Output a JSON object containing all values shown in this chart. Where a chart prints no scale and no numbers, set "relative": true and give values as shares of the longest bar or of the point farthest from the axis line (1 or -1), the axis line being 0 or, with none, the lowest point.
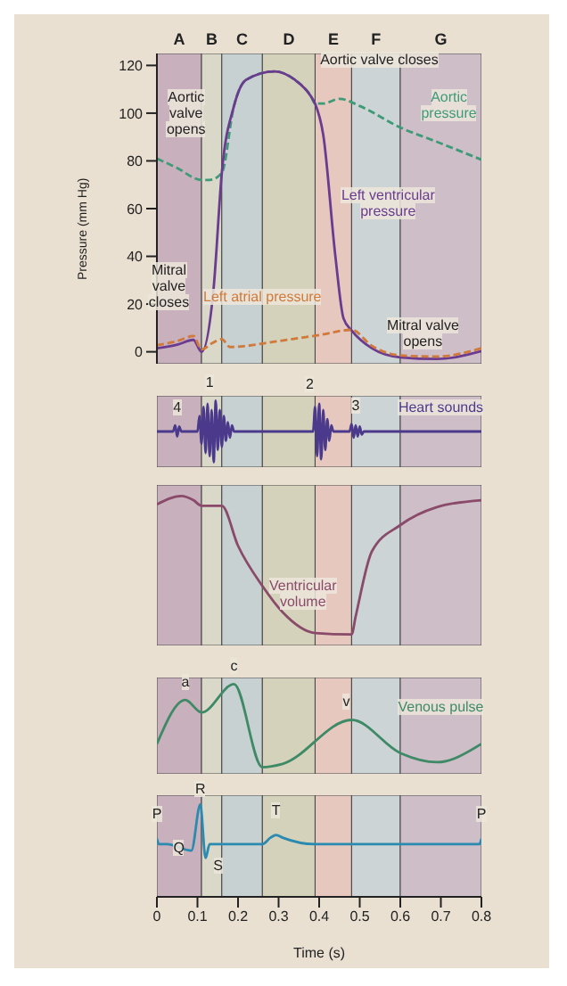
{
  "chart_data": [
    {
      "type": "line",
      "ylabel": "Pressure (mm Hg)",
      "xlim": [
        0,
        0.8
      ],
      "ylim": [
        -5,
        125
      ],
      "yticks": [
        0,
        20,
        40,
        60,
        80,
        100,
        120
      ],
      "tick_labels": "y",
      "series": [
        {
          "name": "Aortic pressure",
          "color": "#3f9a78",
          "line_style": "dashed",
          "x": [
            0,
            0.05,
            0.11,
            0.13,
            0.16,
            0.19,
            0.22,
            0.29,
            0.34,
            0.38,
            0.39,
            0.41,
            0.45,
            0.5,
            0.6,
            0.69,
            0.8
          ],
          "values": [
            81,
            77,
            72,
            72,
            75,
            103,
            114,
            117.5,
            114,
            107,
            104,
            104,
            106,
            103,
            94,
            88,
            80.5
          ]
        },
        {
          "name": "Left ventricular pressure",
          "color": "#6a3b8e",
          "x": [
            0,
            0.05,
            0.09,
            0.11,
            0.14,
            0.16,
            0.19,
            0.22,
            0.29,
            0.34,
            0.38,
            0.39,
            0.41,
            0.44,
            0.46,
            0.48,
            0.53,
            0.6,
            0.69,
            0.8
          ],
          "values": [
            1.5,
            3,
            5,
            0,
            27,
            75,
            103,
            114,
            117.5,
            114,
            107,
            104,
            91,
            40,
            14,
            9,
            1.5,
            -2.3,
            -3,
            0.3
          ]
        },
        {
          "name": "Left atrial pressure",
          "color": "#d0793a",
          "line_style": "dashed",
          "x": [
            0,
            0.05,
            0.09,
            0.11,
            0.14,
            0.16,
            0.18,
            0.3,
            0.4,
            0.48,
            0.53,
            0.6,
            0.69,
            0.8
          ],
          "values": [
            2.8,
            4.5,
            6.6,
            1,
            4,
            5.3,
            2,
            4.5,
            7,
            9.2,
            2.5,
            -1.5,
            -2,
            1.5
          ]
        }
      ],
      "annotations": [
        {
          "text": "Aortic valve opens",
          "x": 0.16,
          "y": 75
        },
        {
          "text": "Aortic valve closes",
          "x": 0.39,
          "y": 104
        },
        {
          "text": "Mitral valve closes",
          "x": 0.1,
          "y": 4
        },
        {
          "text": "Mitral valve opens",
          "x": 0.48,
          "y": 9
        }
      ],
      "bands": [
        {
          "axis": "x",
          "from": 0,
          "to": 0.11,
          "label": "A",
          "color": "#c9b0bd"
        },
        {
          "axis": "x",
          "from": 0.11,
          "to": 0.16,
          "label": "B",
          "color": "#d9d8c9"
        },
        {
          "axis": "x",
          "from": 0.16,
          "to": 0.26,
          "label": "C",
          "color": "#c8d1d2"
        },
        {
          "axis": "x",
          "from": 0.26,
          "to": 0.39,
          "label": "D",
          "color": "#d5d2bb"
        },
        {
          "axis": "x",
          "from": 0.39,
          "to": 0.48,
          "label": "E",
          "color": "#e6c8bf"
        },
        {
          "axis": "x",
          "from": 0.48,
          "to": 0.6,
          "label": "F",
          "color": "#ccd4d5"
        },
        {
          "axis": "x",
          "from": 0.6,
          "to": 0.8,
          "label": "G",
          "color": "#cdbec8"
        }
      ]
    },
    {
      "type": "line",
      "relative": true,
      "xlim": [
        0,
        0.8
      ],
      "tick_labels": false,
      "series": [
        {
          "name": "Heart sounds",
          "color": "#4b3a8c",
          "x": [
            0,
            0.04,
            0.045,
            0.05,
            0.055,
            0.06,
            0.1,
            0.105,
            0.11,
            0.115,
            0.12,
            0.125,
            0.13,
            0.135,
            0.14,
            0.145,
            0.15,
            0.155,
            0.16,
            0.165,
            0.17,
            0.175,
            0.18,
            0.185,
            0.19,
            0.385,
            0.39,
            0.395,
            0.4,
            0.405,
            0.41,
            0.415,
            0.42,
            0.425,
            0.43,
            0.435,
            0.475,
            0.48,
            0.485,
            0.49,
            0.495,
            0.5,
            0.505,
            0.51,
            0.8
          ],
          "values": [
            0.5,
            0.5,
            0.6,
            0.42,
            0.58,
            0.5,
            0.5,
            0.75,
            0.3,
            0.9,
            0.15,
            0.95,
            0.1,
            0.85,
            0,
            1,
            0.2,
            0.85,
            0.25,
            0.75,
            0.35,
            0.65,
            0.4,
            0.6,
            0.5,
            0.5,
            0.9,
            0.1,
            0.95,
            0.05,
            0.85,
            0.2,
            0.7,
            0.35,
            0.6,
            0.5,
            0.5,
            0.62,
            0.4,
            0.6,
            0.42,
            0.58,
            0.45,
            0.5,
            0.5
          ]
        }
      ],
      "annotations": [
        {
          "text": "4",
          "x": 0.05,
          "y": 0.6
        },
        {
          "text": "1",
          "x": 0.13,
          "y": 1
        },
        {
          "text": "2",
          "x": 0.39,
          "y": 0.95
        },
        {
          "text": "3",
          "x": 0.49,
          "y": 0.62
        }
      ],
      "bands": [
        {
          "axis": "x",
          "from": 0,
          "to": 0.11,
          "color": "#c9b0bd"
        },
        {
          "axis": "x",
          "from": 0.11,
          "to": 0.16,
          "color": "#d9d8c9"
        },
        {
          "axis": "x",
          "from": 0.16,
          "to": 0.26,
          "color": "#c8d1d2"
        },
        {
          "axis": "x",
          "from": 0.26,
          "to": 0.39,
          "color": "#d5d2bb"
        },
        {
          "axis": "x",
          "from": 0.39,
          "to": 0.48,
          "color": "#e6c8bf"
        },
        {
          "axis": "x",
          "from": 0.48,
          "to": 0.6,
          "color": "#ccd4d5"
        },
        {
          "axis": "x",
          "from": 0.6,
          "to": 0.8,
          "color": "#cdbec8"
        }
      ]
    },
    {
      "type": "line",
      "relative": true,
      "xlim": [
        0,
        0.8
      ],
      "tick_labels": false,
      "series": [
        {
          "name": "Ventricular volume",
          "color": "#8a4a6a",
          "x": [
            0,
            0.06,
            0.09,
            0.11,
            0.16,
            0.2,
            0.26,
            0.31,
            0.39,
            0.48,
            0.49,
            0.53,
            0.6,
            0.69,
            0.8
          ],
          "values": [
            0.94,
            1,
            0.97,
            0.93,
            0.93,
            0.64,
            0.35,
            0.16,
            0.01,
            0,
            0.13,
            0.6,
            0.79,
            0.92,
            0.97
          ]
        }
      ],
      "bands": [
        {
          "axis": "x",
          "from": 0,
          "to": 0.11,
          "color": "#c9b0bd"
        },
        {
          "axis": "x",
          "from": 0.11,
          "to": 0.16,
          "color": "#d9d8c9"
        },
        {
          "axis": "x",
          "from": 0.16,
          "to": 0.26,
          "color": "#c8d1d2"
        },
        {
          "axis": "x",
          "from": 0.26,
          "to": 0.39,
          "color": "#d5d2bb"
        },
        {
          "axis": "x",
          "from": 0.39,
          "to": 0.48,
          "color": "#e6c8bf"
        },
        {
          "axis": "x",
          "from": 0.48,
          "to": 0.6,
          "color": "#ccd4d5"
        },
        {
          "axis": "x",
          "from": 0.6,
          "to": 0.8,
          "color": "#cdbec8"
        }
      ]
    },
    {
      "type": "line",
      "relative": true,
      "xlim": [
        0,
        0.8
      ],
      "tick_labels": false,
      "series": [
        {
          "name": "Venous pulse",
          "color": "#3f8a66",
          "x": [
            0,
            0.07,
            0.11,
            0.19,
            0.26,
            0.31,
            0.48,
            0.6,
            0.69,
            0.8
          ],
          "values": [
            0.28,
            0.81,
            0.66,
            1,
            0,
            0.04,
            0.57,
            0.17,
            0.06,
            0.28
          ]
        }
      ],
      "annotations": [
        {
          "text": "a",
          "x": 0.07,
          "y": 0.81
        },
        {
          "text": "c",
          "x": 0.19,
          "y": 1
        },
        {
          "text": "v",
          "x": 0.48,
          "y": 0.57
        }
      ],
      "bands": [
        {
          "axis": "x",
          "from": 0,
          "to": 0.11,
          "color": "#c9b0bd"
        },
        {
          "axis": "x",
          "from": 0.11,
          "to": 0.16,
          "color": "#d9d8c9"
        },
        {
          "axis": "x",
          "from": 0.16,
          "to": 0.26,
          "color": "#c8d1d2"
        },
        {
          "axis": "x",
          "from": 0.26,
          "to": 0.39,
          "color": "#d5d2bb"
        },
        {
          "axis": "x",
          "from": 0.39,
          "to": 0.48,
          "color": "#e6c8bf"
        },
        {
          "axis": "x",
          "from": 0.48,
          "to": 0.6,
          "color": "#ccd4d5"
        },
        {
          "axis": "x",
          "from": 0.6,
          "to": 0.8,
          "color": "#cdbec8"
        }
      ]
    },
    {
      "type": "line",
      "relative": true,
      "xlabel": "Time (s)",
      "xlim": [
        0,
        0.8
      ],
      "xticks": [
        0,
        0.1,
        0.2,
        0.3,
        0.4,
        0.5,
        0.6,
        0.7,
        0.8
      ],
      "tick_labels": "x",
      "series": [
        {
          "color": "#2a8ab0",
          "x": [
            0,
            0.005,
            0.025,
            0.085,
            0.107,
            0.12,
            0.13,
            0.26,
            0.28,
            0.294,
            0.31,
            0.39,
            0.795,
            0.8
          ],
          "values": [
            0.63,
            0.57,
            0.57,
            0.5,
            1,
            0.42,
            0.57,
            0.57,
            0.64,
            0.67,
            0.64,
            0.57,
            0.57,
            0.63
          ]
        }
      ],
      "annotations": [
        {
          "text": "P",
          "x": 0,
          "y": 0.63
        },
        {
          "text": "Q",
          "x": 0.085,
          "y": 0.5
        },
        {
          "text": "R",
          "x": 0.107,
          "y": 1
        },
        {
          "text": "S",
          "x": 0.12,
          "y": 0.42
        },
        {
          "text": "T",
          "x": 0.294,
          "y": 0.67
        },
        {
          "text": "P",
          "x": 0.8,
          "y": 0.63
        }
      ],
      "bands": [
        {
          "axis": "x",
          "from": 0,
          "to": 0.11,
          "color": "#c9b0bd"
        },
        {
          "axis": "x",
          "from": 0.11,
          "to": 0.16,
          "color": "#d9d8c9"
        },
        {
          "axis": "x",
          "from": 0.16,
          "to": 0.26,
          "color": "#c8d1d2"
        },
        {
          "axis": "x",
          "from": 0.26,
          "to": 0.39,
          "color": "#d5d2bb"
        },
        {
          "axis": "x",
          "from": 0.39,
          "to": 0.48,
          "color": "#e6c8bf"
        },
        {
          "axis": "x",
          "from": 0.48,
          "to": 0.6,
          "color": "#ccd4d5"
        },
        {
          "axis": "x",
          "from": 0.6,
          "to": 0.8,
          "color": "#cdbec8"
        }
      ]
    }
  ]
}
